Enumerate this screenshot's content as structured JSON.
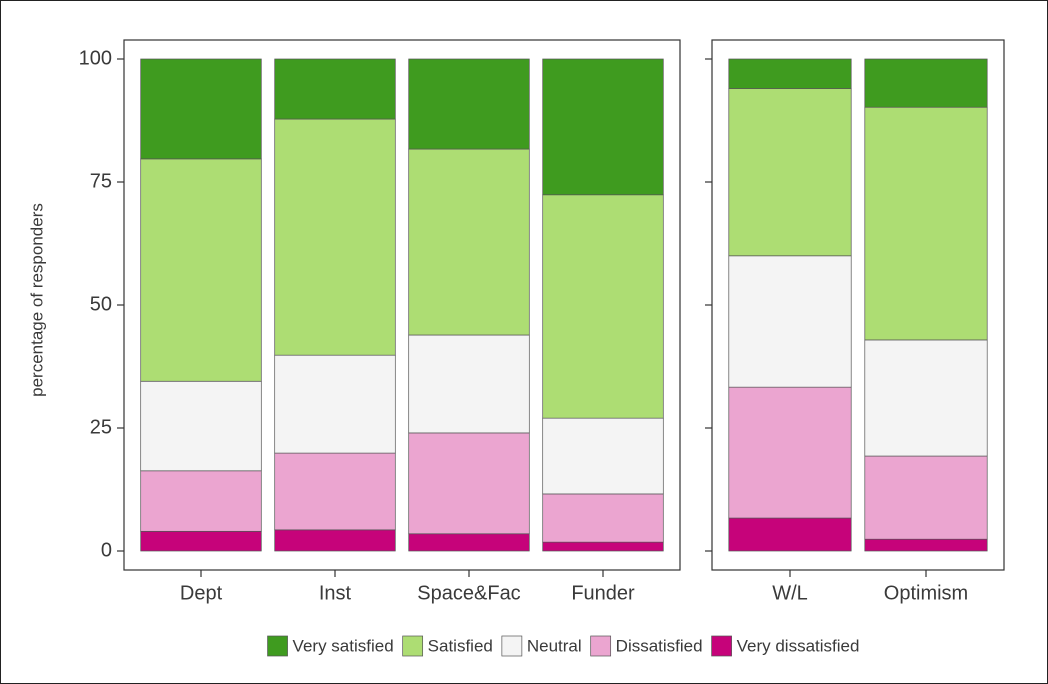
{
  "chart_data": [
    {
      "type": "bar",
      "stacked": true,
      "ylabel": "percentage of responders",
      "categories": [
        "Dept",
        "Inst",
        "Space&Fac",
        "Funder"
      ],
      "ylim": [
        0,
        100
      ],
      "yticks": [
        0,
        25,
        50,
        75,
        100
      ],
      "series": [
        {
          "name": "Very satisfied",
          "color": "#3f9b1f",
          "values": [
            20.3,
            12.2,
            18.3,
            27.6
          ]
        },
        {
          "name": "Satisfied",
          "color": "#addd73",
          "values": [
            45.2,
            48,
            37.8,
            45.4
          ]
        },
        {
          "name": "Neutral",
          "color": "#f4f4f4",
          "values": [
            18.2,
            19.9,
            19.9,
            15.4
          ]
        },
        {
          "name": "Dissatisfied",
          "color": "#eba5d0",
          "values": [
            12.3,
            15.6,
            20.5,
            9.8
          ]
        },
        {
          "name": "Very dissatisfied",
          "color": "#c6037a",
          "values": [
            4,
            4.3,
            3.5,
            1.8
          ]
        }
      ]
    },
    {
      "type": "bar",
      "stacked": true,
      "categories": [
        "W/L",
        "Optimism"
      ],
      "ylim": [
        0,
        100
      ],
      "yticks": [
        0,
        25,
        50,
        75,
        100
      ],
      "series": [
        {
          "color": "#3f9b1f",
          "values": [
            6,
            9.8
          ]
        },
        {
          "color": "#addd73",
          "values": [
            34,
            47.3
          ]
        },
        {
          "color": "#f4f4f4",
          "values": [
            26.7,
            23.6
          ]
        },
        {
          "color": "#eba5d0",
          "values": [
            26.6,
            16.9
          ]
        },
        {
          "color": "#c6037a",
          "values": [
            6.7,
            2.4
          ]
        }
      ]
    }
  ]
}
